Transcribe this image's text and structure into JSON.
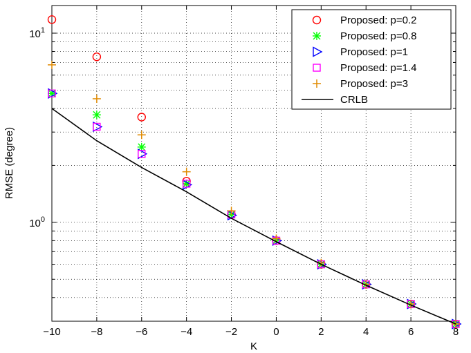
{
  "chart_data": {
    "type": "scatter",
    "xlabel": "K",
    "ylabel": "RMSE (degree)",
    "yscale": "log",
    "xlim": [
      -10,
      8
    ],
    "ylim": [
      0.3,
      14
    ],
    "x_ticks": [
      -10,
      -8,
      -6,
      -4,
      -2,
      0,
      2,
      4,
      6,
      8
    ],
    "x_tick_labels": [
      "−10",
      "−8",
      "−6",
      "−4",
      "−2",
      "0",
      "2",
      "4",
      "6",
      "8"
    ],
    "y_tick_labels": [
      {
        "value": 1,
        "base": "10",
        "exp": "0"
      },
      {
        "value": 10,
        "base": "10",
        "exp": "1"
      }
    ],
    "grid": true,
    "legend_position": "top-right",
    "series": [
      {
        "name": "Proposed: p=0.2",
        "marker": "circle",
        "color": "#ff0000",
        "x": [
          -10,
          -8,
          -6,
          -4,
          -2,
          0,
          2,
          4,
          6,
          8
        ],
        "y": [
          11.8,
          7.5,
          3.6,
          1.65,
          1.1,
          0.8,
          0.6,
          0.47,
          0.37,
          0.29
        ]
      },
      {
        "name": "Proposed: p=0.8",
        "marker": "asterisk",
        "color": "#00ff00",
        "x": [
          -10,
          -8,
          -6,
          -4,
          -2,
          0,
          2,
          4,
          6,
          8
        ],
        "y": [
          4.8,
          3.7,
          2.5,
          1.6,
          1.1,
          0.8,
          0.6,
          0.47,
          0.37,
          0.29
        ]
      },
      {
        "name": "Proposed: p=1",
        "marker": "triangle-right",
        "color": "#0000ff",
        "x": [
          -10,
          -8,
          -6,
          -4,
          -2,
          0,
          2,
          4,
          6,
          8
        ],
        "y": [
          4.8,
          3.2,
          2.3,
          1.58,
          1.09,
          0.8,
          0.6,
          0.47,
          0.37,
          0.29
        ]
      },
      {
        "name": "Proposed: p=1.4",
        "marker": "square",
        "color": "#ff00ff",
        "x": [
          -10,
          -8,
          -6,
          -4,
          -2,
          0,
          2,
          4,
          6,
          8
        ],
        "y": [
          4.8,
          3.2,
          2.3,
          1.6,
          1.1,
          0.8,
          0.6,
          0.47,
          0.37,
          0.29
        ]
      },
      {
        "name": "Proposed: p=3",
        "marker": "plus",
        "color": "#e08a00",
        "x": [
          -10,
          -8,
          -6,
          -4,
          -2,
          0,
          2,
          4,
          6,
          8
        ],
        "y": [
          6.8,
          4.5,
          2.9,
          1.85,
          1.15,
          0.82,
          0.61,
          0.47,
          0.37,
          0.29
        ]
      },
      {
        "name": "CRLB",
        "marker": "line",
        "color": "#000000",
        "x": [
          -10,
          -8,
          -6,
          -4,
          -2,
          0,
          2,
          4,
          6,
          8
        ],
        "y": [
          4.0,
          2.7,
          1.95,
          1.45,
          1.05,
          0.79,
          0.6,
          0.465,
          0.365,
          0.29
        ]
      }
    ]
  }
}
